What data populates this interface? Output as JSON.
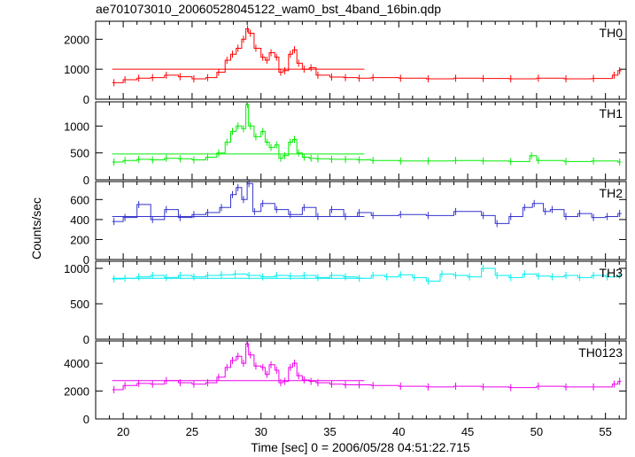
{
  "title": "ae701073010_20060528045122_wam0_bst_4band_16bin.qdp",
  "chart_data": {
    "type": "line",
    "xlabel": "Time [sec] 0 = 2006/05/28 04:51:22.715",
    "ylabel": "Counts/sec",
    "xlim": [
      18,
      56.5
    ],
    "xticks": [
      20,
      25,
      30,
      35,
      40,
      45,
      50,
      55
    ],
    "grid": false,
    "panels": [
      {
        "name": "TH0",
        "color": "#ff0000",
        "ylim": [
          0,
          2600
        ],
        "yticks": [
          0,
          1000,
          2000
        ],
        "reference_level": 1000,
        "reference_x": [
          19.2,
          37.5
        ],
        "x": [
          19.2,
          20,
          21,
          22,
          23,
          24,
          25,
          26,
          26.8,
          27.4,
          27.8,
          28.2,
          28.6,
          28.9,
          29.1,
          29.5,
          30,
          30.3,
          30.6,
          31,
          31.3,
          31.6,
          32,
          32.3,
          32.6,
          33,
          33.5,
          34,
          35,
          36,
          37,
          38,
          40,
          42,
          44,
          46,
          48,
          50,
          52,
          54,
          55.5,
          55.9
        ],
        "y": [
          550,
          650,
          700,
          720,
          800,
          750,
          680,
          720,
          900,
          1300,
          1500,
          1700,
          2000,
          2350,
          2200,
          1700,
          1400,
          1300,
          1550,
          1400,
          900,
          950,
          1500,
          1650,
          1200,
          1000,
          1050,
          800,
          740,
          720,
          700,
          720,
          700,
          680,
          700,
          690,
          680,
          700,
          680,
          690,
          800,
          950
        ]
      },
      {
        "name": "TH1",
        "color": "#00ee00",
        "ylim": [
          0,
          1450
        ],
        "yticks": [
          0,
          500,
          1000
        ],
        "reference_level": 480,
        "reference_x": [
          19.2,
          37.5
        ],
        "x": [
          19.2,
          20,
          21,
          22,
          23,
          24,
          25,
          26,
          26.8,
          27.4,
          27.8,
          28.2,
          28.6,
          28.9,
          29.1,
          29.5,
          30,
          30.3,
          30.6,
          31,
          31.3,
          31.6,
          32,
          32.3,
          32.6,
          33,
          33.5,
          34,
          35,
          36,
          37,
          38,
          40,
          42,
          44,
          46,
          48,
          49.5,
          50,
          52,
          54,
          55.9
        ],
        "y": [
          330,
          360,
          380,
          370,
          400,
          390,
          370,
          420,
          500,
          700,
          900,
          1000,
          950,
          1400,
          1000,
          800,
          900,
          700,
          600,
          650,
          400,
          450,
          700,
          750,
          500,
          420,
          400,
          390,
          380,
          380,
          370,
          360,
          350,
          350,
          360,
          350,
          340,
          450,
          360,
          340,
          350,
          330
        ]
      },
      {
        "name": "TH2",
        "color": "#3333cc",
        "ylim": [
          0,
          780
        ],
        "yticks": [
          0,
          200,
          400,
          600
        ],
        "reference_level": 430,
        "reference_x": [
          19.2,
          37.5
        ],
        "x": [
          19.2,
          20,
          21,
          22,
          23,
          24,
          25,
          26,
          27,
          27.8,
          28.2,
          28.6,
          29,
          29.4,
          30,
          31,
          32,
          33,
          34,
          35,
          36,
          37,
          38,
          40,
          42,
          44,
          46,
          47,
          48,
          49,
          49.7,
          50.5,
          51,
          52,
          53,
          54,
          55,
          55.9
        ],
        "y": [
          380,
          420,
          550,
          400,
          500,
          420,
          450,
          470,
          520,
          650,
          720,
          600,
          760,
          480,
          560,
          500,
          450,
          520,
          430,
          500,
          430,
          470,
          440,
          450,
          440,
          480,
          440,
          360,
          430,
          520,
          560,
          480,
          500,
          430,
          460,
          420,
          430,
          460
        ]
      },
      {
        "name": "TH3",
        "color": "#00eeee",
        "ylim": [
          0,
          1100
        ],
        "yticks": [
          0,
          500,
          1000
        ],
        "reference_level": 860,
        "reference_x": [
          19.2,
          37.5
        ],
        "x": [
          19.2,
          20,
          21,
          22,
          23,
          24,
          25,
          26,
          27,
          28,
          29,
          30,
          31,
          32,
          33,
          34,
          35,
          36,
          37,
          38,
          39,
          40,
          41,
          42,
          43,
          44,
          45,
          46,
          47,
          48,
          49,
          50,
          51,
          52,
          53,
          54,
          55,
          55.9
        ],
        "y": [
          850,
          860,
          880,
          900,
          870,
          900,
          880,
          900,
          910,
          920,
          900,
          880,
          900,
          890,
          900,
          870,
          900,
          880,
          860,
          900,
          880,
          910,
          870,
          820,
          920,
          900,
          880,
          1000,
          900,
          870,
          920,
          890,
          880,
          900,
          870,
          900,
          880,
          900
        ]
      },
      {
        "name": "TH0123",
        "color": "#ee00ee",
        "ylim": [
          0,
          5600
        ],
        "yticks": [
          0,
          2000,
          4000
        ],
        "reference_level": 2750,
        "reference_x": [
          19.2,
          37.5
        ],
        "x": [
          19.2,
          20,
          21,
          22,
          23,
          24,
          25,
          26,
          26.8,
          27.4,
          27.8,
          28.2,
          28.6,
          28.9,
          29.1,
          29.5,
          30,
          30.3,
          30.6,
          31,
          31.3,
          31.6,
          32,
          32.3,
          32.6,
          33,
          33.5,
          34,
          35,
          36,
          37,
          38,
          40,
          42,
          44,
          46,
          48,
          50,
          52,
          54,
          55.5,
          55.9
        ],
        "y": [
          2100,
          2400,
          2550,
          2500,
          2750,
          2600,
          2500,
          2600,
          3000,
          3700,
          4200,
          4500,
          4000,
          5400,
          4600,
          3800,
          3700,
          3200,
          3900,
          3500,
          2600,
          2700,
          3700,
          4000,
          3100,
          2800,
          2700,
          2600,
          2500,
          2450,
          2450,
          2400,
          2350,
          2300,
          2350,
          2300,
          2250,
          2350,
          2300,
          2300,
          2500,
          2700
        ]
      }
    ]
  }
}
